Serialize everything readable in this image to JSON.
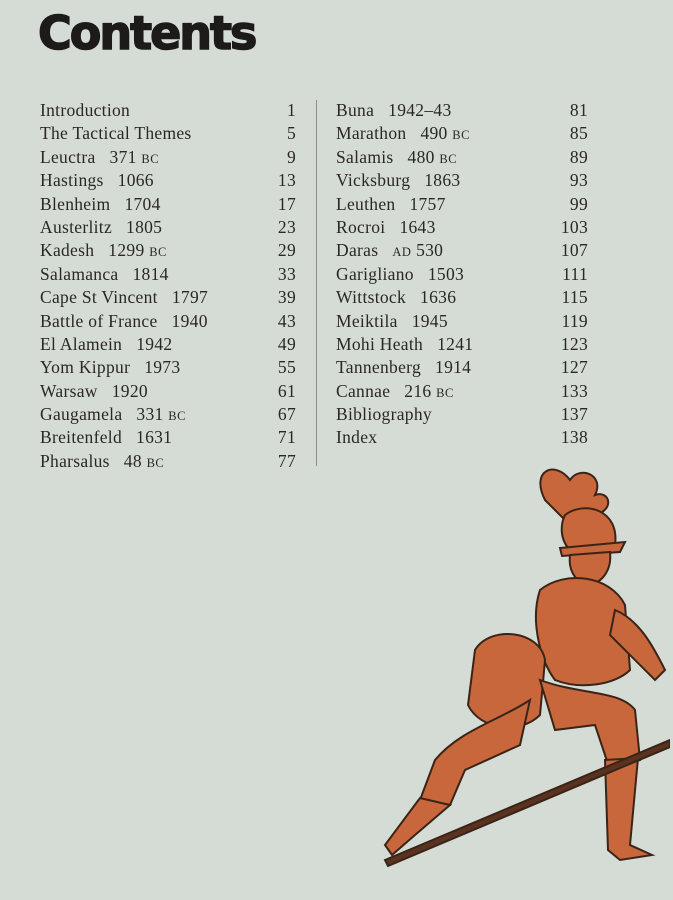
{
  "title": "Contents",
  "left_column": [
    {
      "name": "Introduction",
      "date": "",
      "era": "",
      "page": "1"
    },
    {
      "name": "The Tactical Themes",
      "date": "",
      "era": "",
      "page": "5"
    },
    {
      "name": "Leuctra",
      "date": "371",
      "era": "BC",
      "page": "9"
    },
    {
      "name": "Hastings",
      "date": "1066",
      "era": "",
      "page": "13"
    },
    {
      "name": "Blenheim",
      "date": "1704",
      "era": "",
      "page": "17"
    },
    {
      "name": "Austerlitz",
      "date": "1805",
      "era": "",
      "page": "23"
    },
    {
      "name": "Kadesh",
      "date": "1299",
      "era": "BC",
      "page": "29"
    },
    {
      "name": "Salamanca",
      "date": "1814",
      "era": "",
      "page": "33"
    },
    {
      "name": "Cape St Vincent",
      "date": "1797",
      "era": "",
      "page": "39"
    },
    {
      "name": "Battle of France",
      "date": "1940",
      "era": "",
      "page": "43"
    },
    {
      "name": "El Alamein",
      "date": "1942",
      "era": "",
      "page": "49"
    },
    {
      "name": "Yom Kippur",
      "date": "1973",
      "era": "",
      "page": "55"
    },
    {
      "name": "Warsaw",
      "date": "1920",
      "era": "",
      "page": "61"
    },
    {
      "name": "Gaugamela",
      "date": "331",
      "era": "BC",
      "page": "67"
    },
    {
      "name": "Breitenfeld",
      "date": "1631",
      "era": "",
      "page": "71"
    },
    {
      "name": "Pharsalus",
      "date": "48",
      "era": "BC",
      "page": "77"
    }
  ],
  "right_column": [
    {
      "name": "Buna",
      "date": "1942–43",
      "era": "",
      "page": "81"
    },
    {
      "name": "Marathon",
      "date": "490",
      "era": "BC",
      "page": "85"
    },
    {
      "name": "Salamis",
      "date": "480",
      "era": "BC",
      "page": "89"
    },
    {
      "name": "Vicksburg",
      "date": "1863",
      "era": "",
      "page": "93"
    },
    {
      "name": "Leuthen",
      "date": "1757",
      "era": "",
      "page": "99"
    },
    {
      "name": "Rocroi",
      "date": "1643",
      "era": "",
      "page": "103"
    },
    {
      "name": "Daras",
      "prefix": "AD",
      "date": "530",
      "era": "",
      "page": "107"
    },
    {
      "name": "Garigliano",
      "date": "1503",
      "era": "",
      "page": "111"
    },
    {
      "name": "Wittstock",
      "date": "1636",
      "era": "",
      "page": "115"
    },
    {
      "name": "Meiktila",
      "date": "1945",
      "era": "",
      "page": "119"
    },
    {
      "name": "Mohi Heath",
      "date": "1241",
      "era": "",
      "page": "123"
    },
    {
      "name": "Tannenberg",
      "date": "1914",
      "era": "",
      "page": "127"
    },
    {
      "name": "Cannae",
      "date": "216",
      "era": "BC",
      "page": "133"
    },
    {
      "name": "Bibliography",
      "date": "",
      "era": "",
      "page": "137"
    },
    {
      "name": "Index",
      "date": "",
      "era": "",
      "page": "138"
    }
  ],
  "colors": {
    "background": "#d5dbd5",
    "illustration": "#c9673c",
    "ink": "#2a2826"
  },
  "illustration": "soldier-with-pike"
}
